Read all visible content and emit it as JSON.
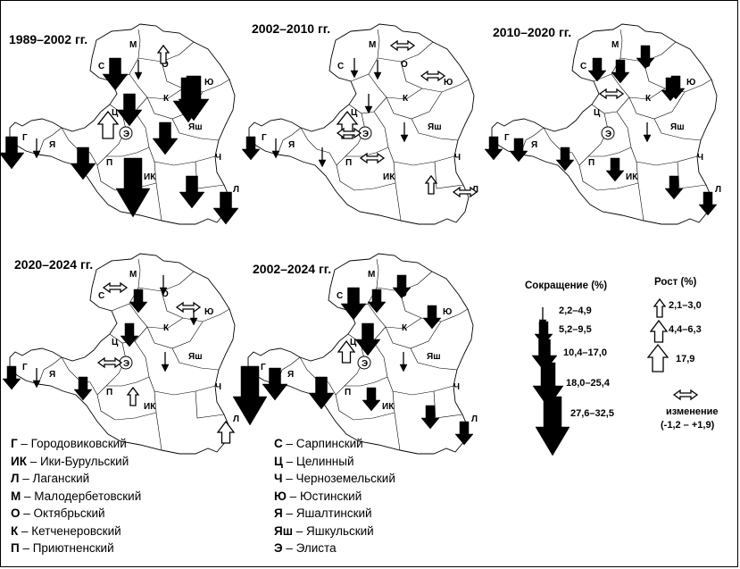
{
  "panels": [
    {
      "id": "p1",
      "title": "1989–2002 гг.",
      "arrows": [
        {
          "d": "М",
          "t": "up",
          "s": 0
        },
        {
          "d": "С",
          "t": "down",
          "s": 3
        },
        {
          "d": "О",
          "t": "down",
          "s": 1
        },
        {
          "d": "Ю",
          "t": "down",
          "s": 4
        },
        {
          "d": "Ц",
          "t": "down",
          "s": 3
        },
        {
          "d": "Ц2",
          "t": "up",
          "s": 2
        },
        {
          "d": "К",
          "t": "down",
          "s": 4
        },
        {
          "d": "Г",
          "t": "down",
          "s": 3
        },
        {
          "d": "Я",
          "t": "down",
          "s": 1
        },
        {
          "d": "П",
          "t": "down",
          "s": 3
        },
        {
          "d": "ИК",
          "t": "down",
          "s": 5
        },
        {
          "d": "Яш",
          "t": "down",
          "s": 3
        },
        {
          "d": "Ч",
          "t": "down",
          "s": 3
        },
        {
          "d": "Л",
          "t": "down",
          "s": 3
        }
      ]
    },
    {
      "id": "p2",
      "title": "2002–2010 гг.",
      "arrows": [
        {
          "d": "М",
          "t": "both",
          "s": 0
        },
        {
          "d": "С",
          "t": "down",
          "s": 1
        },
        {
          "d": "О",
          "t": "down",
          "s": 1
        },
        {
          "d": "Ю",
          "t": "both",
          "s": 0
        },
        {
          "d": "Ц",
          "t": "down",
          "s": 1
        },
        {
          "d": "Ц2",
          "t": "up",
          "s": 2
        },
        {
          "d": "Э",
          "t": "both",
          "s": 0
        },
        {
          "d": "Г",
          "t": "down",
          "s": 2
        },
        {
          "d": "Я",
          "t": "down",
          "s": 1
        },
        {
          "d": "П",
          "t": "down",
          "s": 1
        },
        {
          "d": "ИК",
          "t": "both",
          "s": 0
        },
        {
          "d": "Яш",
          "t": "down",
          "s": 1
        },
        {
          "d": "Ч",
          "t": "up",
          "s": 0
        },
        {
          "d": "Л",
          "t": "both",
          "s": 0
        }
      ]
    },
    {
      "id": "p3",
      "title": "2010–2020 гг.",
      "arrows": [
        {
          "d": "М",
          "t": "down",
          "s": 2
        },
        {
          "d": "С",
          "t": "down",
          "s": 2
        },
        {
          "d": "О",
          "t": "down",
          "s": 2
        },
        {
          "d": "Ю",
          "t": "down",
          "s": 2
        },
        {
          "d": "К",
          "t": "down",
          "s": 2
        },
        {
          "d": "Ц",
          "t": "both",
          "s": 0
        },
        {
          "d": "Г",
          "t": "down",
          "s": 2
        },
        {
          "d": "Я",
          "t": "down",
          "s": 2
        },
        {
          "d": "П",
          "t": "down",
          "s": 2
        },
        {
          "d": "ИК",
          "t": "down",
          "s": 2
        },
        {
          "d": "Яш",
          "t": "down",
          "s": 1
        },
        {
          "d": "Ч",
          "t": "down",
          "s": 2
        },
        {
          "d": "Л",
          "t": "down",
          "s": 2
        }
      ]
    },
    {
      "id": "p4",
      "title": "2020–2024 гг.",
      "arrows": [
        {
          "d": "М",
          "t": "down",
          "s": 1
        },
        {
          "d": "С",
          "t": "both",
          "s": 0
        },
        {
          "d": "О",
          "t": "down",
          "s": 2
        },
        {
          "d": "Ю",
          "t": "down",
          "s": 1
        },
        {
          "d": "Ц",
          "t": "down",
          "s": 2
        },
        {
          "d": "Э",
          "t": "both",
          "s": 0
        },
        {
          "d": "К",
          "t": "both",
          "s": 0
        },
        {
          "d": "Г",
          "t": "down",
          "s": 2
        },
        {
          "d": "Я",
          "t": "down",
          "s": 1
        },
        {
          "d": "П",
          "t": "down",
          "s": 2
        },
        {
          "d": "ИК",
          "t": "up",
          "s": 0
        },
        {
          "d": "Яш",
          "t": "down",
          "s": 1
        },
        {
          "d": "Л",
          "t": "up",
          "s": 1
        }
      ]
    },
    {
      "id": "p5",
      "title": "2002–2024 гг.",
      "arrows": [
        {
          "d": "М",
          "t": "down",
          "s": 2
        },
        {
          "d": "С",
          "t": "down",
          "s": 3
        },
        {
          "d": "О",
          "t": "down",
          "s": 2
        },
        {
          "d": "Ю",
          "t": "down",
          "s": 2
        },
        {
          "d": "Ц",
          "t": "down",
          "s": 3
        },
        {
          "d": "Ц2",
          "t": "up",
          "s": 1
        },
        {
          "d": "Г",
          "t": "down",
          "s": 5
        },
        {
          "d": "Я",
          "t": "down",
          "s": 3
        },
        {
          "d": "П",
          "t": "down",
          "s": 3
        },
        {
          "d": "ИК",
          "t": "down",
          "s": 2
        },
        {
          "d": "Яш",
          "t": "down",
          "s": 1
        },
        {
          "d": "Ч",
          "t": "down",
          "s": 2
        },
        {
          "d": "Л",
          "t": "down",
          "s": 2
        }
      ]
    }
  ],
  "map_labels": [
    "М",
    "С",
    "О",
    "Ю",
    "К",
    "Ц",
    "Э",
    "Г",
    "Я",
    "П",
    "ИК",
    "Яш",
    "Ч",
    "Л"
  ],
  "legend": {
    "decrease_title": "Сокращение (%)",
    "increase_title": "Рост (%)",
    "decrease_classes": [
      "2,2–4,9",
      "5,2–9,5",
      "10,4–17,0",
      "18,0–25,4",
      "27,6–32,5"
    ],
    "increase_classes": [
      "2,1–3,0",
      "4,4–6,3",
      "17,9"
    ],
    "change_label": "изменение",
    "change_range": "(-1,2 – +1,9)"
  },
  "key_left": [
    {
      "abbr": "Г",
      "name": "Городовиковский"
    },
    {
      "abbr": "ИК",
      "name": "Ики-Бурульский"
    },
    {
      "abbr": "Л",
      "name": "Лаганский"
    },
    {
      "abbr": "М",
      "name": "Малодербетовский"
    },
    {
      "abbr": "О",
      "name": "Октябрьский"
    },
    {
      "abbr": "К",
      "name": "Кетченеровский"
    },
    {
      "abbr": "П",
      "name": "Приютненский"
    }
  ],
  "key_right": [
    {
      "abbr": "С",
      "name": "Сарпинский"
    },
    {
      "abbr": "Ц",
      "name": "Целинный"
    },
    {
      "abbr": "Ч",
      "name": "Черноземельский"
    },
    {
      "abbr": "Ю",
      "name": "Юстинский"
    },
    {
      "abbr": "Я",
      "name": "Яшалтинский"
    },
    {
      "abbr": "Яш",
      "name": "Яшкульский"
    },
    {
      "abbr": "Э",
      "name": "Элиста"
    }
  ],
  "key_separator": " – "
}
